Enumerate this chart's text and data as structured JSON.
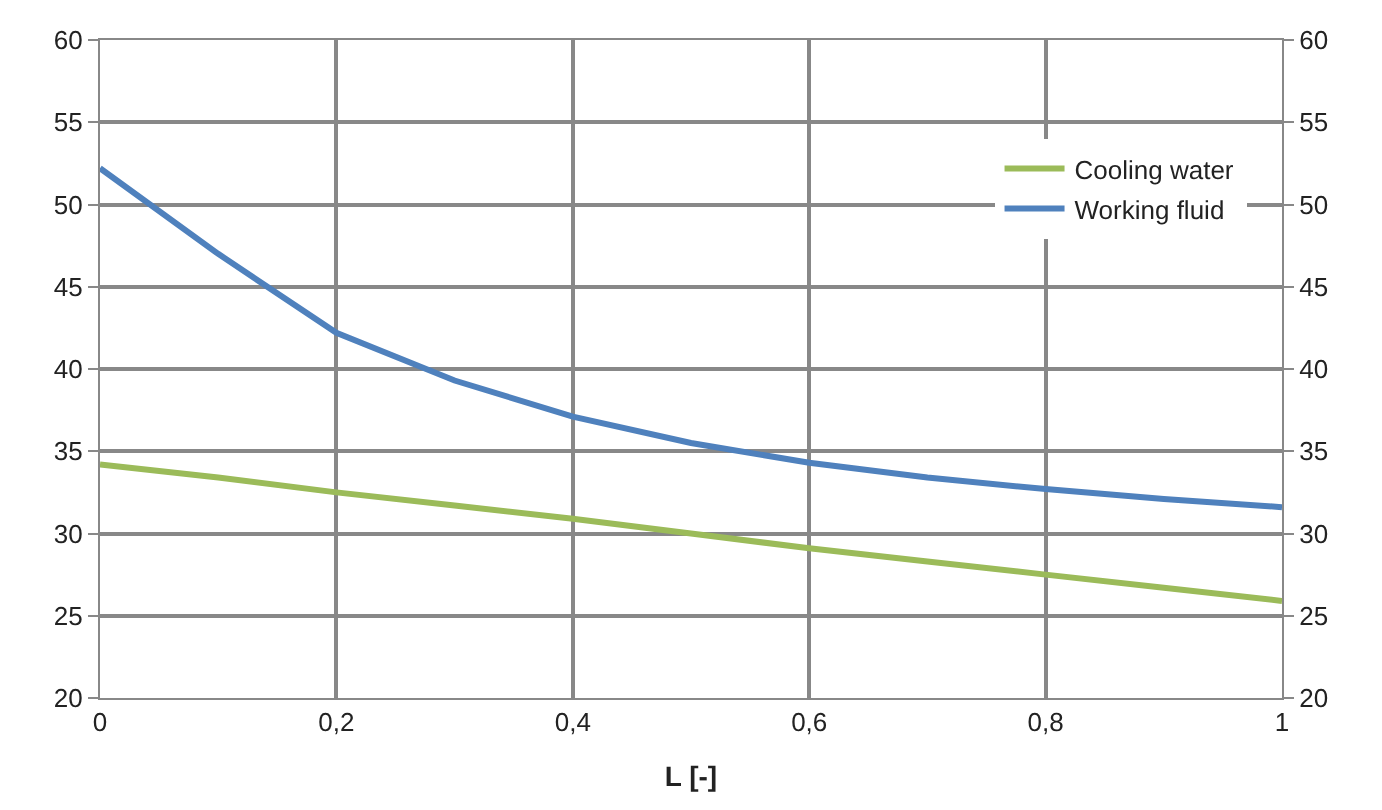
{
  "chart_data": {
    "type": "line",
    "xlabel": "L [-]",
    "x": [
      0,
      0.1,
      0.2,
      0.3,
      0.4,
      0.5,
      0.6,
      0.7,
      0.8,
      0.9,
      1.0
    ],
    "series": [
      {
        "name": "Cooling water",
        "color": "#9bbb59",
        "values": [
          34.2,
          33.4,
          32.5,
          31.7,
          30.9,
          30.0,
          29.1,
          28.3,
          27.5,
          26.7,
          25.9
        ]
      },
      {
        "name": "Working fluid",
        "color": "#4f81bd",
        "values": [
          52.2,
          47.0,
          42.2,
          39.3,
          37.1,
          35.5,
          34.3,
          33.4,
          32.7,
          32.1,
          31.6
        ]
      }
    ],
    "xlim": [
      0,
      1
    ],
    "xticks": [
      {
        "value": 0,
        "label": "0"
      },
      {
        "value": 0.2,
        "label": "0,2"
      },
      {
        "value": 0.4,
        "label": "0,4"
      },
      {
        "value": 0.6,
        "label": "0,6"
      },
      {
        "value": 0.8,
        "label": "0,8"
      },
      {
        "value": 1,
        "label": "1"
      }
    ],
    "ylim": [
      20,
      60
    ],
    "yticks": [
      20,
      25,
      30,
      35,
      40,
      45,
      50,
      55,
      60
    ],
    "y2lim": [
      20,
      60
    ],
    "y2ticks": [
      20,
      25,
      30,
      35,
      40,
      45,
      50,
      55,
      60
    ],
    "grid": true,
    "legend": "top right",
    "marker": "none",
    "line_style": "solid"
  }
}
